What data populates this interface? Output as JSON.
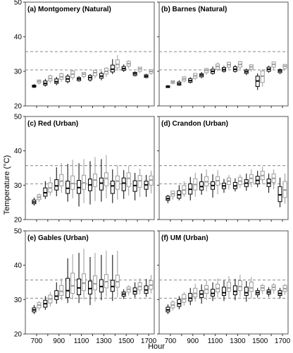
{
  "figure": {
    "ylabel": "Temperature (°C)",
    "xlabel": "Hour",
    "yticks": [
      20,
      30,
      40,
      50
    ],
    "xticks": [
      "700",
      "900",
      "1100",
      "1300",
      "1500",
      "1700"
    ],
    "reference_lines": [
      30.4,
      35.7
    ],
    "series_colors": {
      "black": "#000000",
      "gray": "#9a9a9a"
    }
  },
  "chart_data": [
    {
      "type": "box",
      "title": "(a) Montgomery (Natural)",
      "ylim": [
        20,
        50
      ],
      "hours": [
        700,
        800,
        900,
        1000,
        1100,
        1200,
        1300,
        1400,
        1500,
        1600,
        1700
      ],
      "boxes": [
        {
          "q1": 25.4,
          "med": 25.7,
          "q3": 26.0,
          "lo": 25.2,
          "hi": 26.3
        },
        {
          "q1": 26.0,
          "med": 26.5,
          "q3": 27.2,
          "lo": 25.6,
          "hi": 27.8
        },
        {
          "q1": 26.5,
          "med": 27.0,
          "q3": 27.8,
          "lo": 26.0,
          "hi": 28.4
        },
        {
          "q1": 27.0,
          "med": 27.8,
          "q3": 28.6,
          "lo": 26.5,
          "hi": 29.2
        },
        {
          "q1": 27.3,
          "med": 27.8,
          "q3": 28.2,
          "lo": 27.0,
          "hi": 28.6
        },
        {
          "q1": 27.5,
          "med": 28.2,
          "q3": 28.8,
          "lo": 27.0,
          "hi": 29.2
        },
        {
          "q1": 28.0,
          "med": 28.6,
          "q3": 29.4,
          "lo": 27.4,
          "hi": 30.0
        },
        {
          "q1": 29.8,
          "med": 30.6,
          "q3": 31.8,
          "lo": 29.2,
          "hi": 33.5
        },
        {
          "q1": 30.3,
          "med": 30.8,
          "q3": 31.4,
          "lo": 29.8,
          "hi": 32.0
        },
        {
          "q1": 28.8,
          "med": 29.3,
          "q3": 29.7,
          "lo": 28.5,
          "hi": 30.0
        },
        {
          "q1": 28.2,
          "med": 28.6,
          "q3": 29.0,
          "lo": 28.0,
          "hi": 29.3
        }
      ]
    },
    {
      "type": "box",
      "title": "(b) Barnes (Natural)",
      "ylim": [
        20,
        50
      ],
      "hours": [
        700,
        800,
        900,
        1000,
        1100,
        1200,
        1300,
        1400,
        1500,
        1600,
        1700
      ],
      "boxes": [
        {
          "q1": 25.3,
          "med": 25.5,
          "q3": 25.8,
          "lo": 25.2,
          "hi": 26.0
        },
        {
          "q1": 26.0,
          "med": 26.4,
          "q3": 26.9,
          "lo": 25.8,
          "hi": 27.4
        },
        {
          "q1": 26.8,
          "med": 27.3,
          "q3": 27.9,
          "lo": 26.5,
          "hi": 28.3
        },
        {
          "q1": 28.4,
          "med": 28.9,
          "q3": 29.3,
          "lo": 28.0,
          "hi": 29.8
        },
        {
          "q1": 29.4,
          "med": 30.0,
          "q3": 30.6,
          "lo": 29.0,
          "hi": 31.4
        },
        {
          "q1": 30.0,
          "med": 30.5,
          "q3": 31.1,
          "lo": 29.6,
          "hi": 31.6
        },
        {
          "q1": 30.0,
          "med": 30.6,
          "q3": 31.3,
          "lo": 29.6,
          "hi": 31.8
        },
        {
          "q1": 29.4,
          "med": 29.9,
          "q3": 30.4,
          "lo": 28.9,
          "hi": 30.8
        },
        {
          "q1": 25.6,
          "med": 27.2,
          "q3": 28.6,
          "lo": 24.6,
          "hi": 29.4
        },
        {
          "q1": 30.0,
          "med": 30.6,
          "q3": 31.2,
          "lo": 29.6,
          "hi": 31.6
        },
        {
          "q1": 29.6,
          "med": 30.1,
          "q3": 30.5,
          "lo": 29.2,
          "hi": 30.8
        }
      ]
    },
    {
      "type": "box",
      "title": "(c) Red (Urban)",
      "ylim": [
        20,
        50
      ],
      "hours": [
        700,
        800,
        900,
        1000,
        1100,
        1200,
        1300,
        1400,
        1500,
        1600,
        1700
      ],
      "boxes": [
        {
          "q1": 24.6,
          "med": 25.1,
          "q3": 25.7,
          "lo": 24.1,
          "hi": 26.4
        },
        {
          "q1": 26.8,
          "med": 27.8,
          "q3": 29.2,
          "lo": 26.0,
          "hi": 31.2
        },
        {
          "q1": 28.6,
          "med": 29.8,
          "q3": 31.6,
          "lo": 26.8,
          "hi": 35.2
        },
        {
          "q1": 27.6,
          "med": 29.1,
          "q3": 31.2,
          "lo": 25.2,
          "hi": 36.2
        },
        {
          "q1": 27.6,
          "med": 29.3,
          "q3": 31.4,
          "lo": 23.8,
          "hi": 36.4
        },
        {
          "q1": 28.4,
          "med": 30.1,
          "q3": 31.8,
          "lo": 24.4,
          "hi": 37.0
        },
        {
          "q1": 28.6,
          "med": 30.6,
          "q3": 32.1,
          "lo": 25.2,
          "hi": 37.6
        },
        {
          "q1": 27.6,
          "med": 29.8,
          "q3": 31.2,
          "lo": 24.8,
          "hi": 34.6
        },
        {
          "q1": 28.4,
          "med": 30.6,
          "q3": 32.1,
          "lo": 26.0,
          "hi": 34.4
        },
        {
          "q1": 28.2,
          "med": 29.9,
          "q3": 31.3,
          "lo": 25.6,
          "hi": 33.6
        },
        {
          "q1": 28.8,
          "med": 30.1,
          "q3": 31.2,
          "lo": 26.6,
          "hi": 33.0
        }
      ]
    },
    {
      "type": "box",
      "title": "(d) Crandon (Urban)",
      "ylim": [
        20,
        50
      ],
      "hours": [
        700,
        800,
        900,
        1000,
        1100,
        1200,
        1300,
        1400,
        1500,
        1600,
        1700
      ],
      "boxes": [
        {
          "q1": 25.6,
          "med": 26.1,
          "q3": 26.8,
          "lo": 24.8,
          "hi": 27.2
        },
        {
          "q1": 26.2,
          "med": 27.2,
          "q3": 28.4,
          "lo": 25.6,
          "hi": 30.0
        },
        {
          "q1": 27.4,
          "med": 28.8,
          "q3": 30.4,
          "lo": 25.6,
          "hi": 32.4
        },
        {
          "q1": 28.6,
          "med": 29.6,
          "q3": 31.0,
          "lo": 27.2,
          "hi": 33.4
        },
        {
          "q1": 28.8,
          "med": 29.9,
          "q3": 31.0,
          "lo": 26.4,
          "hi": 33.2
        },
        {
          "q1": 29.0,
          "med": 29.8,
          "q3": 30.6,
          "lo": 27.8,
          "hi": 31.8
        },
        {
          "q1": 29.0,
          "med": 29.8,
          "q3": 30.8,
          "lo": 28.2,
          "hi": 32.0
        },
        {
          "q1": 29.6,
          "med": 30.6,
          "q3": 31.6,
          "lo": 28.4,
          "hi": 33.4
        },
        {
          "q1": 30.4,
          "med": 31.4,
          "q3": 32.6,
          "lo": 29.4,
          "hi": 34.2
        },
        {
          "q1": 29.6,
          "med": 30.6,
          "q3": 31.8,
          "lo": 27.8,
          "hi": 33.4
        },
        {
          "q1": 25.2,
          "med": 27.2,
          "q3": 29.6,
          "lo": 23.6,
          "hi": 32.2
        }
      ]
    },
    {
      "type": "box",
      "title": "(e) Gables (Urban)",
      "ylim": [
        20,
        50
      ],
      "hours": [
        700,
        800,
        900,
        1000,
        1100,
        1200,
        1300,
        1400,
        1500,
        1600,
        1700
      ],
      "boxes": [
        {
          "q1": 26.4,
          "med": 27.0,
          "q3": 27.6,
          "lo": 25.8,
          "hi": 28.4
        },
        {
          "q1": 27.8,
          "med": 28.8,
          "q3": 29.8,
          "lo": 27.0,
          "hi": 31.0
        },
        {
          "q1": 30.0,
          "med": 31.0,
          "q3": 32.6,
          "lo": 28.8,
          "hi": 35.0
        },
        {
          "q1": 30.6,
          "med": 32.6,
          "q3": 36.2,
          "lo": 29.0,
          "hi": 42.0
        },
        {
          "q1": 31.4,
          "med": 33.4,
          "q3": 36.0,
          "lo": 29.0,
          "hi": 43.6
        },
        {
          "q1": 31.6,
          "med": 33.2,
          "q3": 35.4,
          "lo": 28.4,
          "hi": 42.4
        },
        {
          "q1": 32.2,
          "med": 33.8,
          "q3": 35.8,
          "lo": 29.8,
          "hi": 43.0
        },
        {
          "q1": 32.4,
          "med": 33.8,
          "q3": 35.6,
          "lo": 29.6,
          "hi": 43.0
        },
        {
          "q1": 31.0,
          "med": 31.6,
          "q3": 32.2,
          "lo": 30.2,
          "hi": 33.0
        },
        {
          "q1": 31.6,
          "med": 32.4,
          "q3": 33.4,
          "lo": 30.6,
          "hi": 35.0
        },
        {
          "q1": 31.8,
          "med": 32.8,
          "q3": 34.0,
          "lo": 30.8,
          "hi": 36.0
        }
      ]
    },
    {
      "type": "box",
      "title": "(f) UM (Urban)",
      "ylim": [
        20,
        50
      ],
      "hours": [
        700,
        800,
        900,
        1000,
        1100,
        1200,
        1300,
        1400,
        1500,
        1600,
        1700
      ],
      "boxes": [
        {
          "q1": 26.4,
          "med": 27.0,
          "q3": 27.8,
          "lo": 25.8,
          "hi": 28.6
        },
        {
          "q1": 28.0,
          "med": 28.8,
          "q3": 30.0,
          "lo": 27.2,
          "hi": 31.0
        },
        {
          "q1": 29.6,
          "med": 30.4,
          "q3": 31.8,
          "lo": 28.4,
          "hi": 33.4
        },
        {
          "q1": 30.6,
          "med": 31.6,
          "q3": 32.6,
          "lo": 28.8,
          "hi": 34.4
        },
        {
          "q1": 31.0,
          "med": 31.8,
          "q3": 33.0,
          "lo": 29.6,
          "hi": 35.0
        },
        {
          "q1": 31.2,
          "med": 32.0,
          "q3": 33.6,
          "lo": 29.6,
          "hi": 35.6
        },
        {
          "q1": 31.4,
          "med": 32.4,
          "q3": 34.0,
          "lo": 29.8,
          "hi": 36.0
        },
        {
          "q1": 31.2,
          "med": 32.0,
          "q3": 33.6,
          "lo": 29.4,
          "hi": 35.4
        },
        {
          "q1": 31.4,
          "med": 32.0,
          "q3": 32.6,
          "lo": 30.6,
          "hi": 33.4
        },
        {
          "q1": 31.6,
          "med": 32.2,
          "q3": 32.8,
          "lo": 30.8,
          "hi": 33.6
        },
        {
          "q1": 31.2,
          "med": 31.8,
          "q3": 32.6,
          "lo": 30.4,
          "hi": 33.4
        }
      ]
    }
  ]
}
